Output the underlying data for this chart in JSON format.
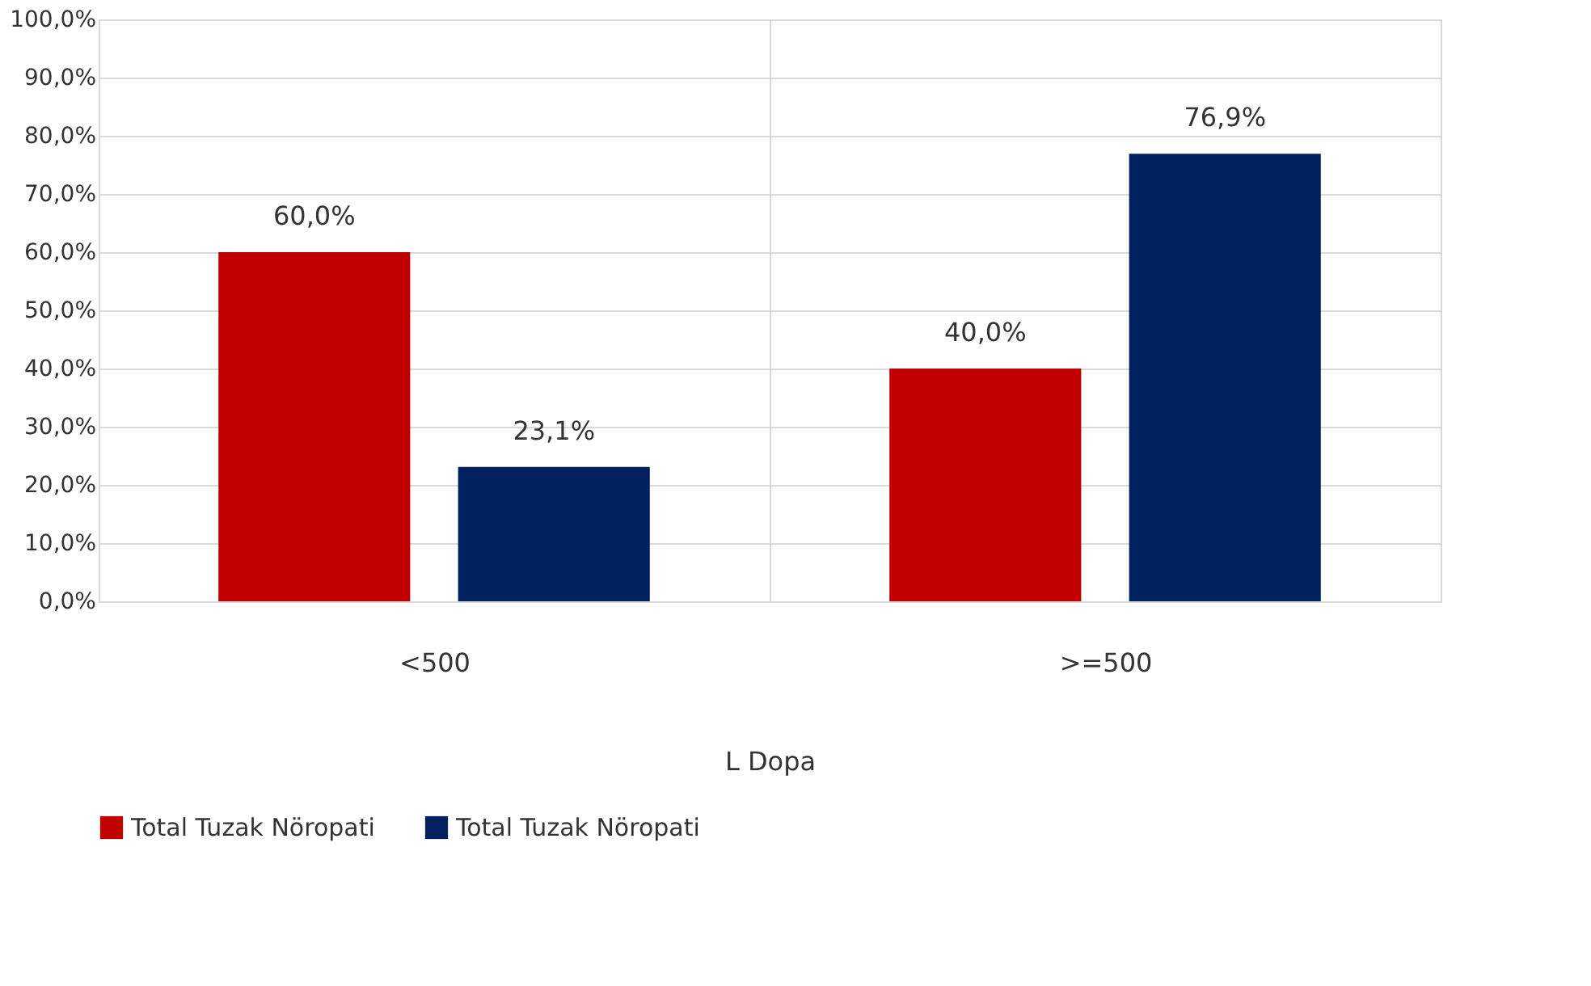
{
  "chart_data": {
    "type": "bar",
    "xlabel": "L Dopa",
    "categories": [
      "<500",
      ">=500"
    ],
    "series": [
      {
        "name": "Total Tuzak Nöropati",
        "color": "#c00000",
        "values": [
          60.0,
          40.0
        ],
        "value_labels": [
          "60,0%",
          "40,0%"
        ]
      },
      {
        "name": "Total Tuzak Nöropati",
        "color": "#002060",
        "values": [
          23.1,
          76.9
        ],
        "value_labels": [
          "23,1%",
          "76,9%"
        ]
      }
    ],
    "ylim": [
      0,
      100
    ],
    "yticks": [
      {
        "value": 0,
        "label": "0,0%"
      },
      {
        "value": 10,
        "label": "10,0%"
      },
      {
        "value": 20,
        "label": "20,0%"
      },
      {
        "value": 30,
        "label": "30,0%"
      },
      {
        "value": 40,
        "label": "40,0%"
      },
      {
        "value": 50,
        "label": "50,0%"
      },
      {
        "value": 60,
        "label": "60,0%"
      },
      {
        "value": 70,
        "label": "70,0%"
      },
      {
        "value": 80,
        "label": "80,0%"
      },
      {
        "value": 90,
        "label": "90,0%"
      },
      {
        "value": 100,
        "label": "100,0%"
      }
    ],
    "grid": true,
    "legend": "bottom"
  }
}
